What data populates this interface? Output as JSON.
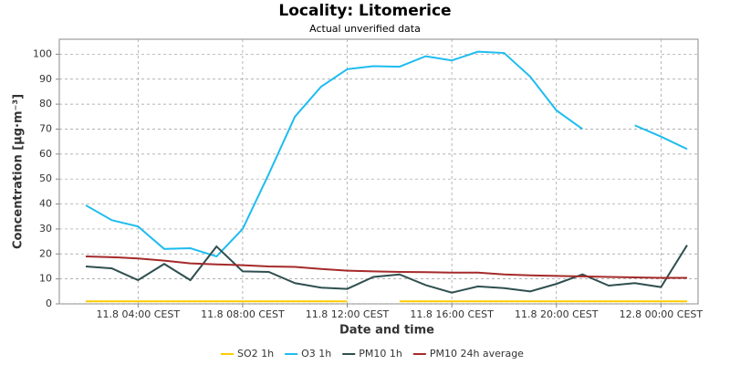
{
  "chart_data": {
    "type": "line",
    "title": "Locality: Litomerice",
    "subtitle": "Actual unverified data",
    "x_label": "Date and time",
    "y_label": "Concentration [µg·m⁻³]",
    "categories": [
      null,
      null,
      "11.8 04:00 CEST",
      null,
      null,
      null,
      "11.8 08:00 CEST",
      null,
      null,
      null,
      "11.8 12:00 CEST",
      null,
      null,
      null,
      "11.8 16:00 CEST",
      null,
      null,
      null,
      "11.8 20:00 CEST",
      null,
      null,
      null,
      "12.8 00:00 CEST",
      null
    ],
    "ylim": [
      0,
      106
    ],
    "yticks": [
      0,
      10,
      20,
      30,
      40,
      50,
      60,
      70,
      80,
      90,
      100
    ],
    "grid": true,
    "legend": "bottom",
    "series": [
      {
        "name": "SO2 1h",
        "color": "#ffcc00",
        "values": [
          1,
          1,
          1,
          1,
          1,
          1,
          1,
          1,
          1,
          1,
          1,
          null,
          1,
          1,
          1,
          1,
          1,
          1,
          1,
          1,
          1,
          1,
          1,
          1
        ]
      },
      {
        "name": "O3 1h",
        "color": "#1ebcf0",
        "values": [
          39.5,
          33.5,
          31,
          22,
          22.3,
          19,
          30,
          52,
          75,
          87,
          94,
          95.2,
          95,
          99.2,
          97.5,
          101,
          100.5,
          91,
          77.5,
          70,
          null,
          71.5,
          67,
          62
        ]
      },
      {
        "name": "PM10 1h",
        "color": "#2f4f4f",
        "values": [
          15,
          14.2,
          9.5,
          16,
          9.5,
          23,
          13,
          12.8,
          8.3,
          6.5,
          6,
          10.8,
          11.8,
          7.5,
          4.5,
          7,
          6.3,
          5,
          8,
          11.8,
          7.3,
          8.3,
          6.7,
          23.5
        ]
      },
      {
        "name": "PM10 24h average",
        "color": "#a52a2a",
        "values": [
          19,
          18.7,
          18.2,
          17.3,
          16.2,
          15.8,
          15.5,
          15,
          14.8,
          14,
          13.3,
          13,
          12.8,
          12.7,
          12.5,
          12.5,
          11.8,
          11.4,
          11.2,
          11,
          10.8,
          10.6,
          10.4,
          10.4
        ]
      }
    ]
  }
}
